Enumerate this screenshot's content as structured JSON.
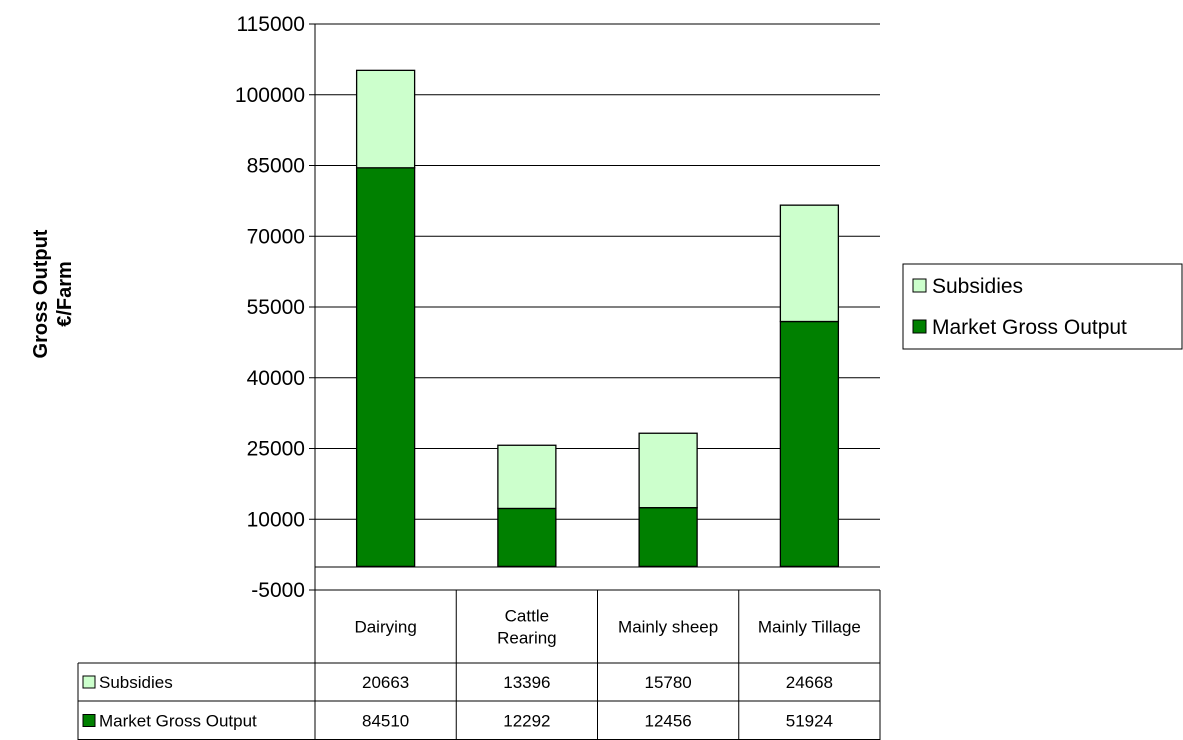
{
  "chart_data": {
    "type": "bar",
    "stacked": true,
    "categories": [
      "Dairying",
      "Cattle\nRearing",
      "Mainly sheep",
      "Mainly Tillage"
    ],
    "series": [
      {
        "name": "Market Gross Output",
        "values": [
          84510,
          12292,
          12456,
          51924
        ],
        "color": "#008000"
      },
      {
        "name": "Subsidies",
        "values": [
          20663,
          13396,
          15780,
          24668
        ],
        "color": "#ccffcc"
      }
    ],
    "ylabel": "Gross Output\n€/Farm",
    "ylim": [
      -5000,
      115000
    ],
    "yticks": [
      -5000,
      10000,
      25000,
      40000,
      55000,
      70000,
      85000,
      100000,
      115000
    ],
    "grid": true,
    "legend": "right",
    "data_table": true
  }
}
